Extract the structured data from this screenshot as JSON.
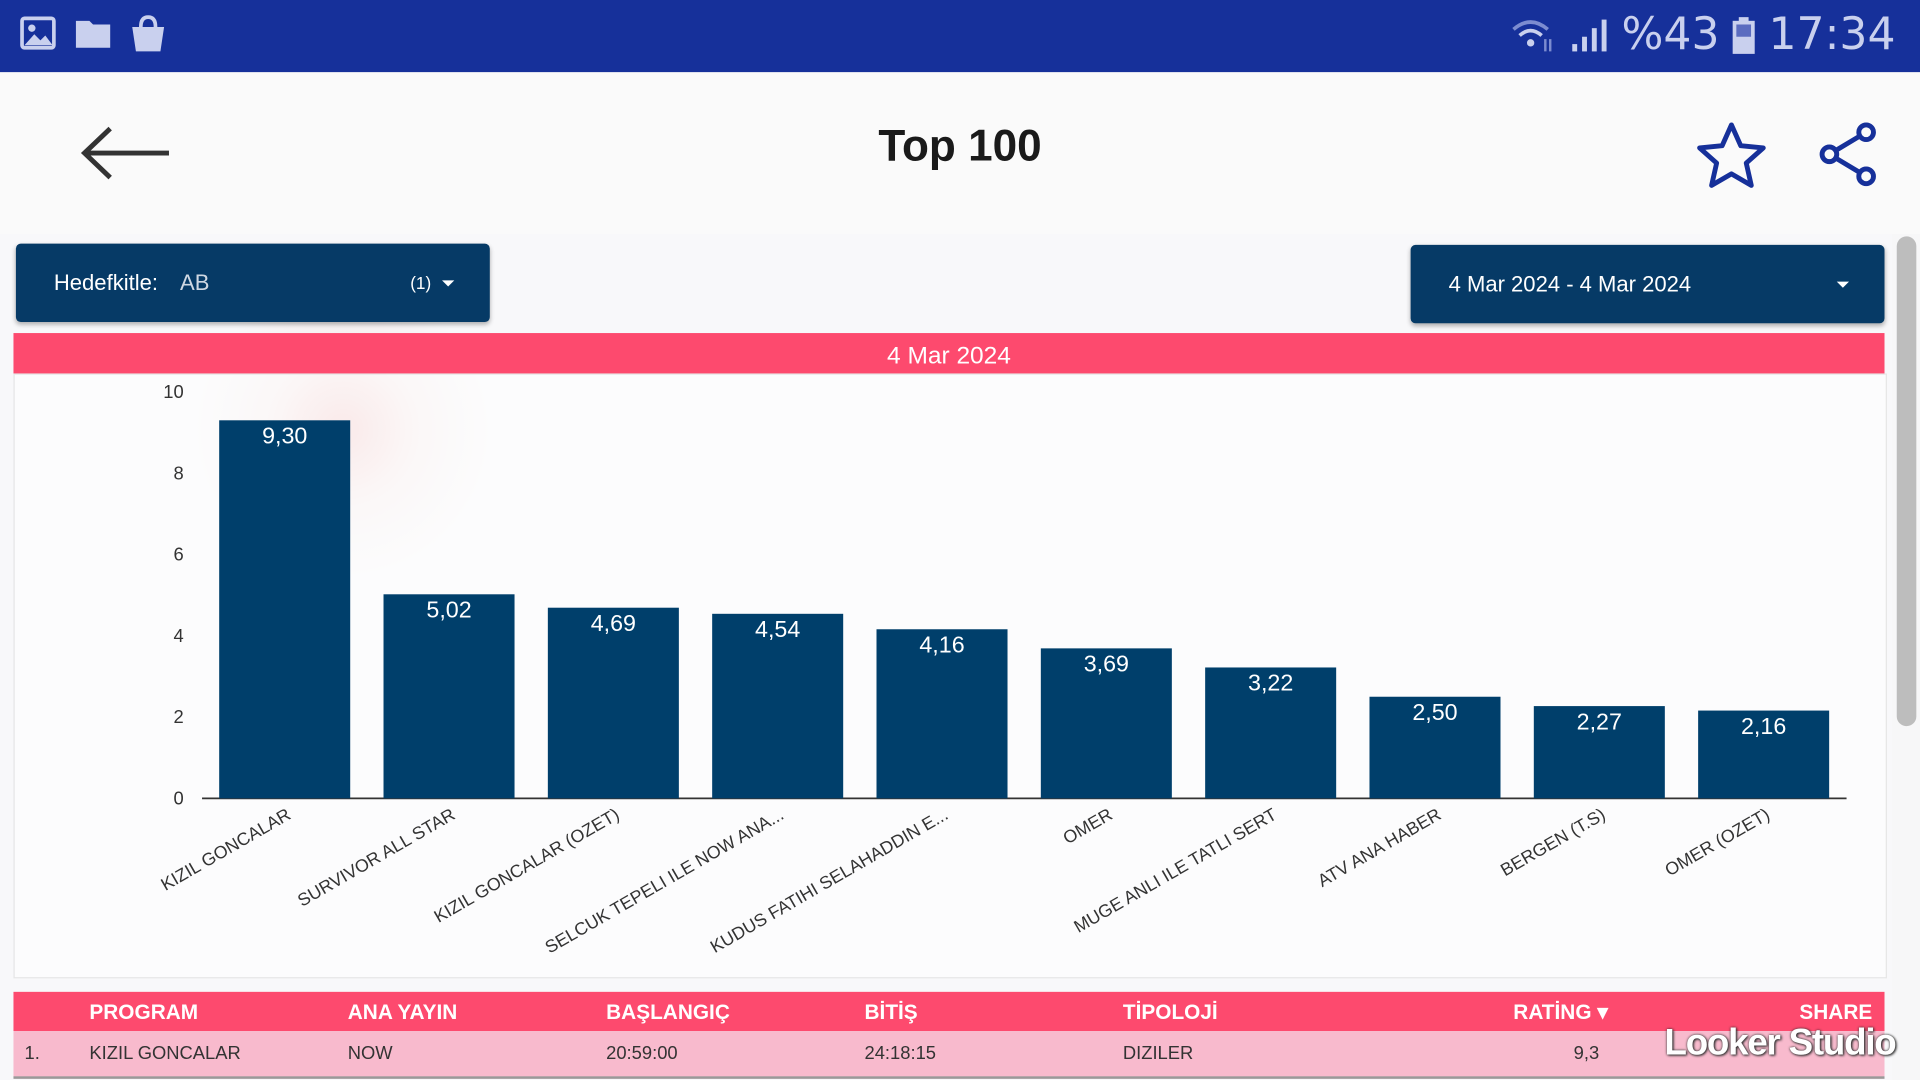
{
  "status_bar": {
    "battery": "%43",
    "time": "17:34",
    "icons": [
      "image-icon",
      "folder-icon",
      "shopping-bag-icon",
      "wifi-icon",
      "signal-icon",
      "battery-icon"
    ]
  },
  "app_bar": {
    "title": "Top 100",
    "back_icon": "arrow-left-icon",
    "favorite_icon": "star-icon",
    "share_icon": "share-icon"
  },
  "filters": {
    "audience_label": "Hedefkitle:",
    "audience_value": "AB",
    "audience_count": "(1)",
    "date_range": "4 Mar 2024 - 4 Mar 2024"
  },
  "date_header": "4 Mar 2024",
  "colors": {
    "status_bar": "#16309a",
    "dropdown": "#063a66",
    "bar": "#003f6b",
    "accent": "#fd4a6e",
    "row": "#f8bacd"
  },
  "chart_data": {
    "type": "bar",
    "title": "4 Mar 2024",
    "categories": [
      "KIZIL GONCALAR",
      "SURVIVOR ALL STAR",
      "KIZIL GONCALAR (OZET)",
      "SELCUK TEPELI ILE NOW ANA...",
      "KUDUS FATIHI SELAHADDIN E...",
      "OMER",
      "MUGE ANLI ILE TATLI SERT",
      "ATV ANA HABER",
      "BERGEN (T.S)",
      "OMER (OZET)"
    ],
    "values": [
      9.3,
      5.02,
      4.69,
      4.54,
      4.16,
      3.69,
      3.22,
      2.5,
      2.27,
      2.16
    ],
    "value_labels": [
      "9,30",
      "5,02",
      "4,69",
      "4,54",
      "4,16",
      "3,69",
      "3,22",
      "2,50",
      "2,27",
      "2,16"
    ],
    "yticks": [
      "0",
      "2",
      "4",
      "6",
      "8",
      "10"
    ],
    "ylim": [
      0,
      10
    ],
    "xlabel": "",
    "ylabel": ""
  },
  "table": {
    "headers": [
      "PROGRAM",
      "ANA YAYIN",
      "BAŞLANGIÇ",
      "BİTİŞ",
      "TİPOLOJİ",
      "RATİNG ▾",
      "SHARE"
    ],
    "rows": [
      {
        "rank": "1.",
        "program": "KIZIL GONCALAR",
        "channel": "NOW",
        "start": "20:59:00",
        "end": "24:18:15",
        "type": "DIZILER",
        "rating": "9,3"
      }
    ]
  },
  "watermark": "Looker Studio"
}
